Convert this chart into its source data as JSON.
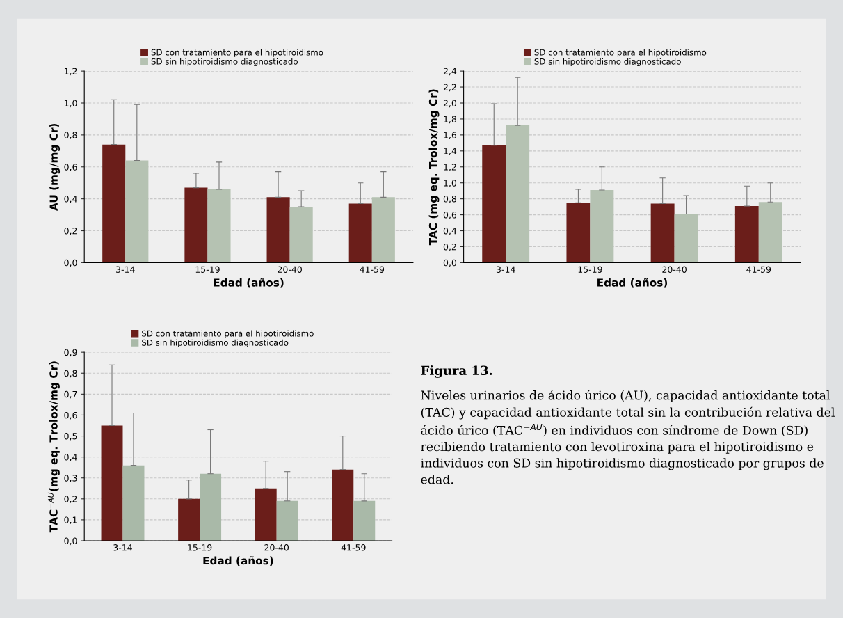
{
  "chart_data": [
    {
      "type": "bar",
      "categories": [
        "3-14",
        "15-19",
        "20-40",
        "41-59"
      ],
      "xlabel": "Edad (años)",
      "ylabel": "AU (mg/mg Cr)",
      "series": [
        {
          "name": "SD con tratamiento para el hipotiroidismo",
          "color": "#6b1e1a",
          "values": [
            0.74,
            0.47,
            0.41,
            0.37
          ],
          "errors": [
            [
              0.74,
              1.02
            ],
            [
              0.47,
              0.56
            ],
            [
              0.41,
              0.57
            ],
            [
              0.37,
              0.5
            ]
          ]
        },
        {
          "name": "SD sin hipotiroidismo diagnosticado",
          "color": "#b5c2b2",
          "values": [
            0.64,
            0.46,
            0.35,
            0.41
          ],
          "errors": [
            [
              0.64,
              0.99
            ],
            [
              0.46,
              0.63
            ],
            [
              0.35,
              0.45
            ],
            [
              0.41,
              0.57
            ]
          ]
        }
      ],
      "ylim": [
        0,
        1.2
      ],
      "yticks": [
        {
          "value": 0,
          "label": "0,0"
        },
        {
          "value": 0.2,
          "label": "0,2"
        },
        {
          "value": 0.4,
          "label": "0,4"
        },
        {
          "value": 0.6,
          "label": "0,6"
        },
        {
          "value": 0.8,
          "label": "0,8"
        },
        {
          "value": 1.0,
          "label": "1,0"
        },
        {
          "value": 1.2,
          "label": "1,2"
        }
      ],
      "grid": "y",
      "legend": "top"
    },
    {
      "type": "bar",
      "categories": [
        "3-14",
        "15-19",
        "20-40",
        "41-59"
      ],
      "xlabel": "Edad (años)",
      "ylabel": "TAC (mg eq. Trolox/mg Cr)",
      "series": [
        {
          "name": "SD con tratamiento para el hipotiroidismo",
          "color": "#6b1e1a",
          "values": [
            1.47,
            0.75,
            0.74,
            0.71
          ],
          "errors": [
            [
              1.47,
              1.99
            ],
            [
              0.75,
              0.92
            ],
            [
              0.74,
              1.06
            ],
            [
              0.71,
              0.96
            ]
          ]
        },
        {
          "name": "SD sin hipotiroidismo diagnosticado",
          "color": "#b5c2b2",
          "values": [
            1.72,
            0.91,
            0.61,
            0.76
          ],
          "errors": [
            [
              1.72,
              2.32
            ],
            [
              0.91,
              1.2
            ],
            [
              0.61,
              0.84
            ],
            [
              0.76,
              1.0
            ]
          ]
        }
      ],
      "ylim": [
        0,
        2.4
      ],
      "yticks": [
        {
          "value": 0,
          "label": "0,0"
        },
        {
          "value": 0.2,
          "label": "0,2"
        },
        {
          "value": 0.4,
          "label": "0,4"
        },
        {
          "value": 0.6,
          "label": "0,6"
        },
        {
          "value": 0.8,
          "label": "0,8"
        },
        {
          "value": 1.0,
          "label": "1,0"
        },
        {
          "value": 1.2,
          "label": "1,2"
        },
        {
          "value": 1.4,
          "label": "1,4"
        },
        {
          "value": 1.6,
          "label": "1,6"
        },
        {
          "value": 1.8,
          "label": "1,8"
        },
        {
          "value": 2.0,
          "label": "2,0"
        },
        {
          "value": 2.2,
          "label": "2,2"
        },
        {
          "value": 2.4,
          "label": "2,4"
        }
      ],
      "grid": "y",
      "legend": "top"
    },
    {
      "type": "bar",
      "categories": [
        "3-14",
        "15-19",
        "20-40",
        "41-59"
      ],
      "xlabel": "Edad (años)",
      "ylabel": "TAC$^{−AU}$(mg eq. Trolox/mg Cr)",
      "series": [
        {
          "name": "SD con tratamiento para el hipotiroidismo",
          "color": "#6b1e1a",
          "values": [
            0.55,
            0.2,
            0.25,
            0.34
          ],
          "errors": [
            [
              0.55,
              0.84
            ],
            [
              0.2,
              0.29
            ],
            [
              0.25,
              0.38
            ],
            [
              0.34,
              0.5
            ]
          ]
        },
        {
          "name": "SD sin hipotiroidismo diagnosticado",
          "color": "#a9b9a8",
          "values": [
            0.36,
            0.32,
            0.19,
            0.19
          ],
          "errors": [
            [
              0.36,
              0.61
            ],
            [
              0.32,
              0.53
            ],
            [
              0.19,
              0.33
            ],
            [
              0.19,
              0.32
            ]
          ]
        }
      ],
      "ylim": [
        0,
        0.9
      ],
      "yticks": [
        {
          "value": 0,
          "label": "0,0"
        },
        {
          "value": 0.1,
          "label": "0,1"
        },
        {
          "value": 0.2,
          "label": "0,2"
        },
        {
          "value": 0.3,
          "label": "0,3"
        },
        {
          "value": 0.4,
          "label": "0,4"
        },
        {
          "value": 0.5,
          "label": "0,5"
        },
        {
          "value": 0.6,
          "label": "0,6"
        },
        {
          "value": 0.7,
          "label": "0,7"
        },
        {
          "value": 0.8,
          "label": "0,8"
        },
        {
          "value": 0.9,
          "label": "0,9"
        }
      ],
      "grid": "y",
      "legend": "top"
    },
    {
      "type": "other",
      "title": "Figura 13.",
      "annotations": [
        "Niveles urinarios de ácido úrico (AU), capacidad antioxidante total (TAC) y capacidad antioxidante total sin la contribución relativa del ácido úrico (TAC$^{−AU}$) en individuos con síndrome de Down (SD) recibiendo tratamiento con levotiroxina para el hipotiroidismo e individuos con SD sin hipotiroidismo diagnosticado por grupos de edad."
      ]
    }
  ]
}
